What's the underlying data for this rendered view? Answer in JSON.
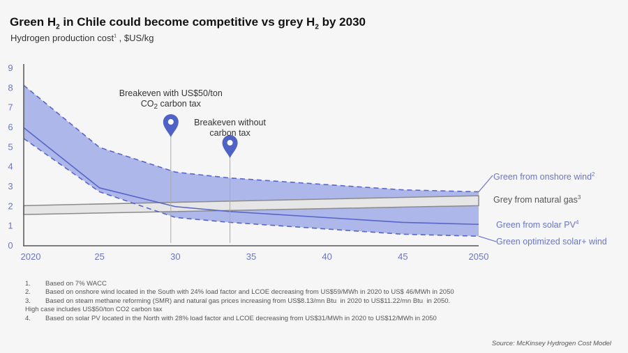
{
  "header": {
    "title_parts": [
      "Green H",
      "2",
      " in Chile could become competitive vs grey H",
      "2",
      " by 2030"
    ],
    "subtitle": "Hydrogen production cost",
    "subtitle_sup": "1",
    "subtitle_unit": " , $US/kg"
  },
  "chart_data": {
    "type": "area",
    "title": "Green H2 in Chile could become competitive vs grey H2 by 2030",
    "ylabel": "Hydrogen production cost, $US/kg",
    "xlabel": "",
    "xlim": [
      2020,
      2050
    ],
    "ylim": [
      0,
      9
    ],
    "x_ticks": [
      2020,
      2025,
      2030,
      2035,
      2040,
      2045,
      2050
    ],
    "x_tick_labels": [
      "2020",
      "25",
      "30",
      "35",
      "40",
      "45",
      "2050"
    ],
    "y_ticks": [
      0,
      1,
      2,
      3,
      4,
      5,
      6,
      7,
      8,
      9
    ],
    "y_tick_labels": [
      "0",
      "1",
      "2",
      "3",
      "4",
      "5",
      "6",
      "7",
      "8",
      "9"
    ],
    "grid": false,
    "series": [
      {
        "name": "Green from onshore wind",
        "sup": "2",
        "style": "dashed",
        "x": [
          2020,
          2025,
          2030,
          2033.6,
          2045,
          2050
        ],
        "values": [
          8.1,
          4.95,
          3.7,
          3.4,
          2.8,
          2.7
        ]
      },
      {
        "name": "Green from solar PV",
        "sup": "4",
        "style": "solid",
        "x": [
          2020,
          2025,
          2030,
          2033.6,
          2045,
          2050
        ],
        "values": [
          5.95,
          2.9,
          1.95,
          1.7,
          1.15,
          1.05
        ]
      },
      {
        "name": "Green optimized solar+ wind",
        "sup": "",
        "style": "dashed",
        "x": [
          2020,
          2025,
          2030,
          2033.6,
          2045,
          2050
        ],
        "values": [
          5.4,
          2.7,
          1.4,
          1.15,
          0.55,
          0.45
        ]
      },
      {
        "name": "Grey from natural gas",
        "sup": "3",
        "style": "band",
        "x": [
          2020,
          2050
        ],
        "high": [
          2.0,
          2.5
        ],
        "low": [
          1.55,
          2.0
        ]
      }
    ],
    "annotations": [
      {
        "label_lines": [
          "Breakeven with US$50/ton",
          "CO2 carbon tax"
        ],
        "x": 2029.7,
        "marker": "pin"
      },
      {
        "label_lines": [
          "Breakeven without",
          "carbon tax"
        ],
        "x": 2033.6,
        "marker": "pin"
      }
    ],
    "legend": "right",
    "colors": {
      "fill": "#aeb7ea",
      "line": "#5765c8",
      "band_fill": "#e6e6e6",
      "band_edge": "#8a8a8a",
      "tick_text": "#6b75c2",
      "axis": "#555555",
      "pin": "#5062c6"
    }
  },
  "footnotes": [
    {
      "num": "1.",
      "text": "Based on 7% WACC"
    },
    {
      "num": "2.",
      "text": "Based on onshore wind located in the South with 24% load factor and LCOE decreasing from US$59/MWh in 2020 to US$ 46/MWh in 2050"
    },
    {
      "num": "3.",
      "text": "Based on steam methane reforming (SMR) and natural gas prices increasing from US$8.13/mn Btu  in 2020 to US$11.22/mn Btu  in 2050.",
      "text2": "High case includes US$50/ton CO2 carbon tax"
    },
    {
      "num": "4.",
      "text": "Based on solar PV located in the North with 28% load factor and LCOE decreasing from US$31/MWh in 2020 to US$12/MWh in 2050"
    }
  ],
  "source": "Source: McKinsey Hydrogen Cost Model"
}
